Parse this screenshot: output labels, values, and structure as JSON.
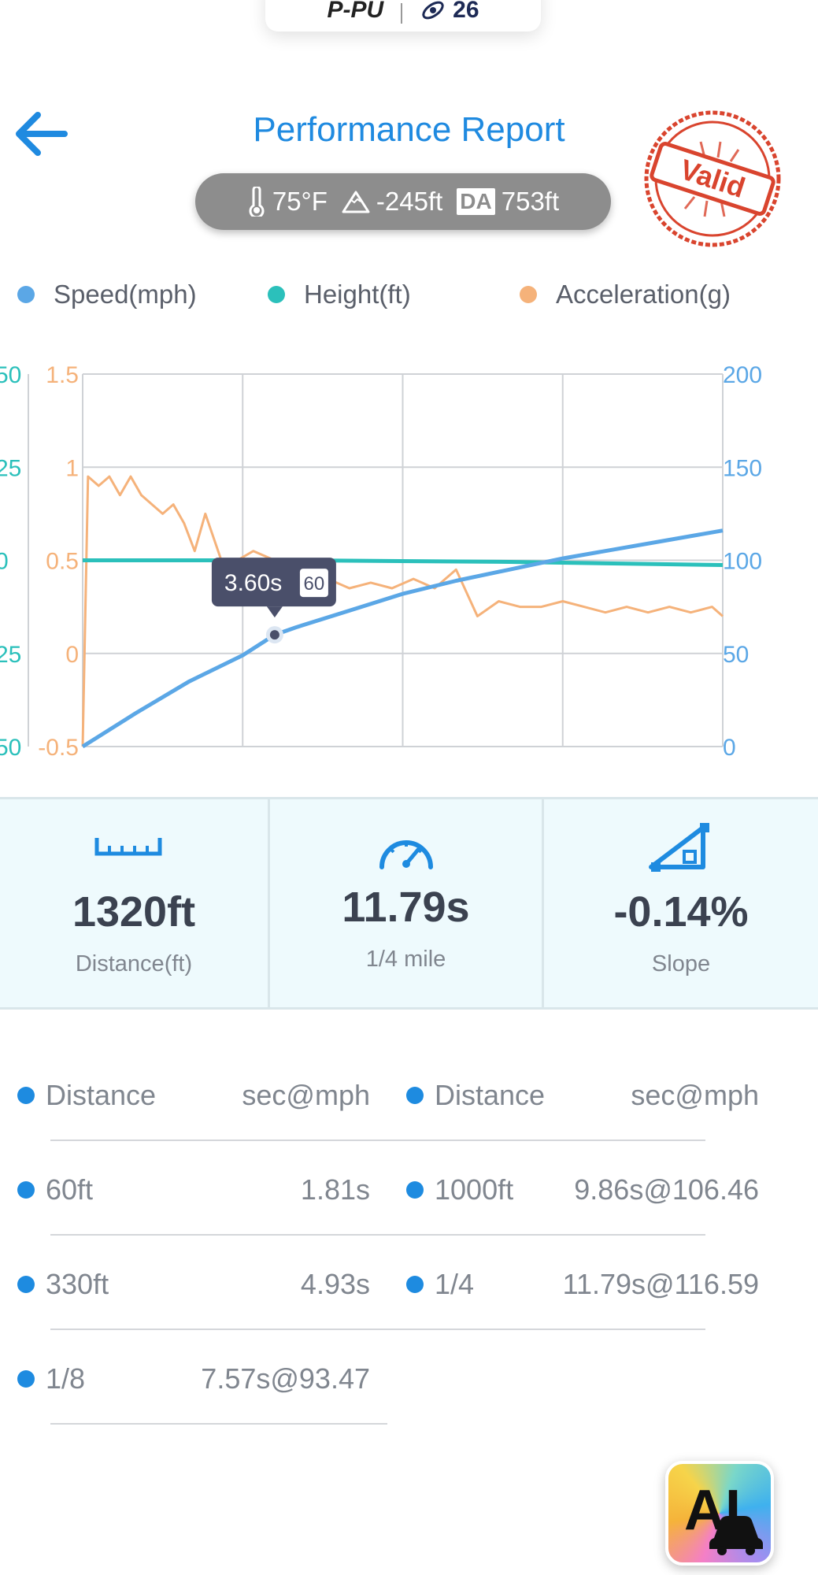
{
  "top_pill": {
    "device": "P-PU",
    "satellites": "26"
  },
  "header": {
    "title": "Performance Report"
  },
  "conditions": {
    "temperature": "75°F",
    "altitude": "-245ft",
    "da_label": "DA",
    "density_altitude": "753ft"
  },
  "stamp": {
    "text": "Valid"
  },
  "legend": [
    {
      "label": "Speed(mph)",
      "color": "#5ba7e6"
    },
    {
      "label": "Height(ft)",
      "color": "#2bc0bb"
    },
    {
      "label": "Acceleration(g)",
      "color": "#f5b27a"
    }
  ],
  "tooltip": {
    "time": "3.60s",
    "speed": "60"
  },
  "chart_data": {
    "type": "line",
    "x_range": [
      0,
      12
    ],
    "axes": {
      "height_left": {
        "ticks": [
          "50",
          "25",
          "0",
          "25",
          "50"
        ],
        "color": "#2bc0bb"
      },
      "acceleration_left": {
        "ticks": [
          "1.5",
          "1",
          "0.5",
          "0",
          "-0.5"
        ],
        "range": [
          -0.5,
          1.5
        ],
        "color": "#f5b27a"
      },
      "speed_right": {
        "ticks": [
          "200",
          "150",
          "100",
          "50",
          "0"
        ],
        "range": [
          0,
          200
        ],
        "color": "#5ba7e6"
      }
    },
    "grid": true,
    "series": [
      {
        "name": "Speed(mph)",
        "color": "#5ba7e6",
        "x": [
          0,
          1,
          2,
          3,
          3.6,
          4,
          5,
          6,
          7,
          8,
          9,
          10,
          11,
          12
        ],
        "y": [
          0,
          18,
          35,
          49,
          60,
          64,
          73,
          82,
          89,
          95,
          101,
          106,
          111,
          116
        ]
      },
      {
        "name": "Height(ft)",
        "color": "#2bc0bb",
        "x": [
          0,
          4,
          8,
          12
        ],
        "y": [
          0,
          0,
          -0.5,
          -1.5
        ]
      },
      {
        "name": "Acceleration(g)",
        "color": "#f5b27a",
        "x": [
          0,
          0.1,
          0.3,
          0.5,
          0.7,
          0.9,
          1.1,
          1.3,
          1.5,
          1.7,
          1.9,
          2.1,
          2.3,
          2.6,
          2.9,
          3.2,
          3.6,
          3.9,
          4.2,
          4.6,
          5.0,
          5.4,
          5.8,
          6.2,
          6.6,
          7.0,
          7.4,
          7.8,
          8.2,
          8.6,
          9.0,
          9.4,
          9.8,
          10.2,
          10.6,
          11.0,
          11.4,
          11.8,
          12.0
        ],
        "y": [
          -0.5,
          0.95,
          0.9,
          0.95,
          0.85,
          0.95,
          0.85,
          0.8,
          0.75,
          0.8,
          0.7,
          0.55,
          0.75,
          0.5,
          0.5,
          0.55,
          0.5,
          0.45,
          0.4,
          0.4,
          0.35,
          0.38,
          0.35,
          0.4,
          0.35,
          0.45,
          0.2,
          0.28,
          0.25,
          0.25,
          0.28,
          0.25,
          0.22,
          0.25,
          0.22,
          0.25,
          0.22,
          0.25,
          0.2
        ]
      }
    ]
  },
  "stats": [
    {
      "value": "1320ft",
      "label": "Distance(ft)",
      "icon": "ruler-icon"
    },
    {
      "value": "11.79s",
      "label": "1/4 mile",
      "icon": "speedometer-icon"
    },
    {
      "value": "-0.14%",
      "label": "Slope",
      "icon": "slope-icon"
    }
  ],
  "splits": {
    "header_key": "Distance",
    "header_val": "sec@mph",
    "left": [
      {
        "k": "60ft",
        "v": "1.81s"
      },
      {
        "k": "330ft",
        "v": "4.93s"
      },
      {
        "k": "1/8",
        "v": "7.57s@93.47"
      }
    ],
    "right": [
      {
        "k": "1000ft",
        "v": "9.86s@106.46"
      },
      {
        "k": "1/4",
        "v": "11.79s@116.59"
      }
    ]
  },
  "ai_button": {
    "label": "AI"
  }
}
